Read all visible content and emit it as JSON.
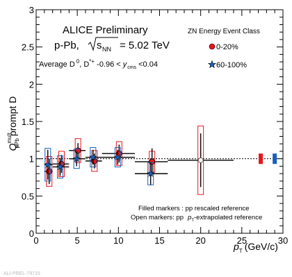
{
  "chart_data": {
    "type": "scatter",
    "title": "ALICE Preliminary",
    "system_label": "p-Pb,",
    "energy_value": "= 5.02 TeV",
    "kinematics": {
      "lead": "Average D",
      "sup0": "0",
      "mid": ", D",
      "supstar": "*+",
      "range": " -0.96 <",
      "y": "y",
      "ysub": "cms",
      "tail": " <0.04"
    },
    "ylabel": {
      "q": "Q",
      "sup": "mult",
      "sub": "pPb",
      "rest": "prompt D"
    },
    "xlabel": {
      "p": "p",
      "sub": "T",
      "unit": "(GeV/c)"
    },
    "xlim": [
      0,
      30
    ],
    "ylim": [
      0,
      3
    ],
    "xticks": [
      "0",
      "5",
      "10",
      "15",
      "20",
      "25",
      "30"
    ],
    "yticks": [
      "0",
      "0.5",
      "1",
      "1.5",
      "2",
      "2.5",
      "3"
    ],
    "reference_line": 1,
    "legend": {
      "title": "ZN Energy Event Class",
      "position": "top-right",
      "items": [
        {
          "label": "0-20%",
          "marker": "circle",
          "color": "#e8161b"
        },
        {
          "label": "60-100%",
          "marker": "star",
          "color": "#1a5fbf"
        }
      ]
    },
    "notes": [
      "Filled markers : pp rescaled reference",
      "Open markers: pp",
      "-extrapolated reference"
    ],
    "series": [
      {
        "name": "0-20%",
        "color": "#e8161b",
        "points": [
          {
            "x": 1.5,
            "y": 0.83,
            "xerr": 0.5,
            "yerr": 0.17,
            "sys": 0.2,
            "open": false
          },
          {
            "x": 3.0,
            "y": 0.93,
            "xerr": 1.0,
            "yerr": 0.12,
            "sys": 0.17,
            "open": false
          },
          {
            "x": 5.0,
            "y": 1.11,
            "xerr": 1.0,
            "yerr": 0.1,
            "sys": 0.16,
            "open": false
          },
          {
            "x": 7.0,
            "y": 0.97,
            "xerr": 1.0,
            "yerr": 0.1,
            "sys": 0.14,
            "open": false
          },
          {
            "x": 10.0,
            "y": 1.07,
            "xerr": 2.0,
            "yerr": 0.12,
            "sys": 0.16,
            "open": false
          },
          {
            "x": 14.0,
            "y": 0.96,
            "xerr": 2.0,
            "yerr": 0.18,
            "sys": 0.14,
            "open": false
          },
          {
            "x": 20.0,
            "y": 0.98,
            "xerr": 4.0,
            "yerr": 0.36,
            "sys": 0.46,
            "open": true
          }
        ]
      },
      {
        "name": "60-100%",
        "color": "#1a5fbf",
        "points": [
          {
            "x": 1.5,
            "y": 0.92,
            "xerr": 0.5,
            "yerr": 0.2,
            "sys": 0.22,
            "open": false
          },
          {
            "x": 3.0,
            "y": 0.89,
            "xerr": 1.0,
            "yerr": 0.12,
            "sys": 0.15,
            "open": false
          },
          {
            "x": 5.0,
            "y": 1.0,
            "xerr": 1.0,
            "yerr": 0.1,
            "sys": 0.13,
            "open": false
          },
          {
            "x": 7.0,
            "y": 1.02,
            "xerr": 1.0,
            "yerr": 0.1,
            "sys": 0.13,
            "open": false
          },
          {
            "x": 10.0,
            "y": 1.02,
            "xerr": 2.0,
            "yerr": 0.1,
            "sys": 0.13,
            "open": false
          },
          {
            "x": 14.0,
            "y": 0.8,
            "xerr": 2.0,
            "yerr": 0.15,
            "sys": 0.15,
            "open": false
          }
        ]
      }
    ],
    "normalization_boxes": [
      {
        "color": "#e8161b"
      },
      {
        "color": "#1a5fbf"
      }
    ]
  },
  "watermark": "ALI-PREL-79715"
}
